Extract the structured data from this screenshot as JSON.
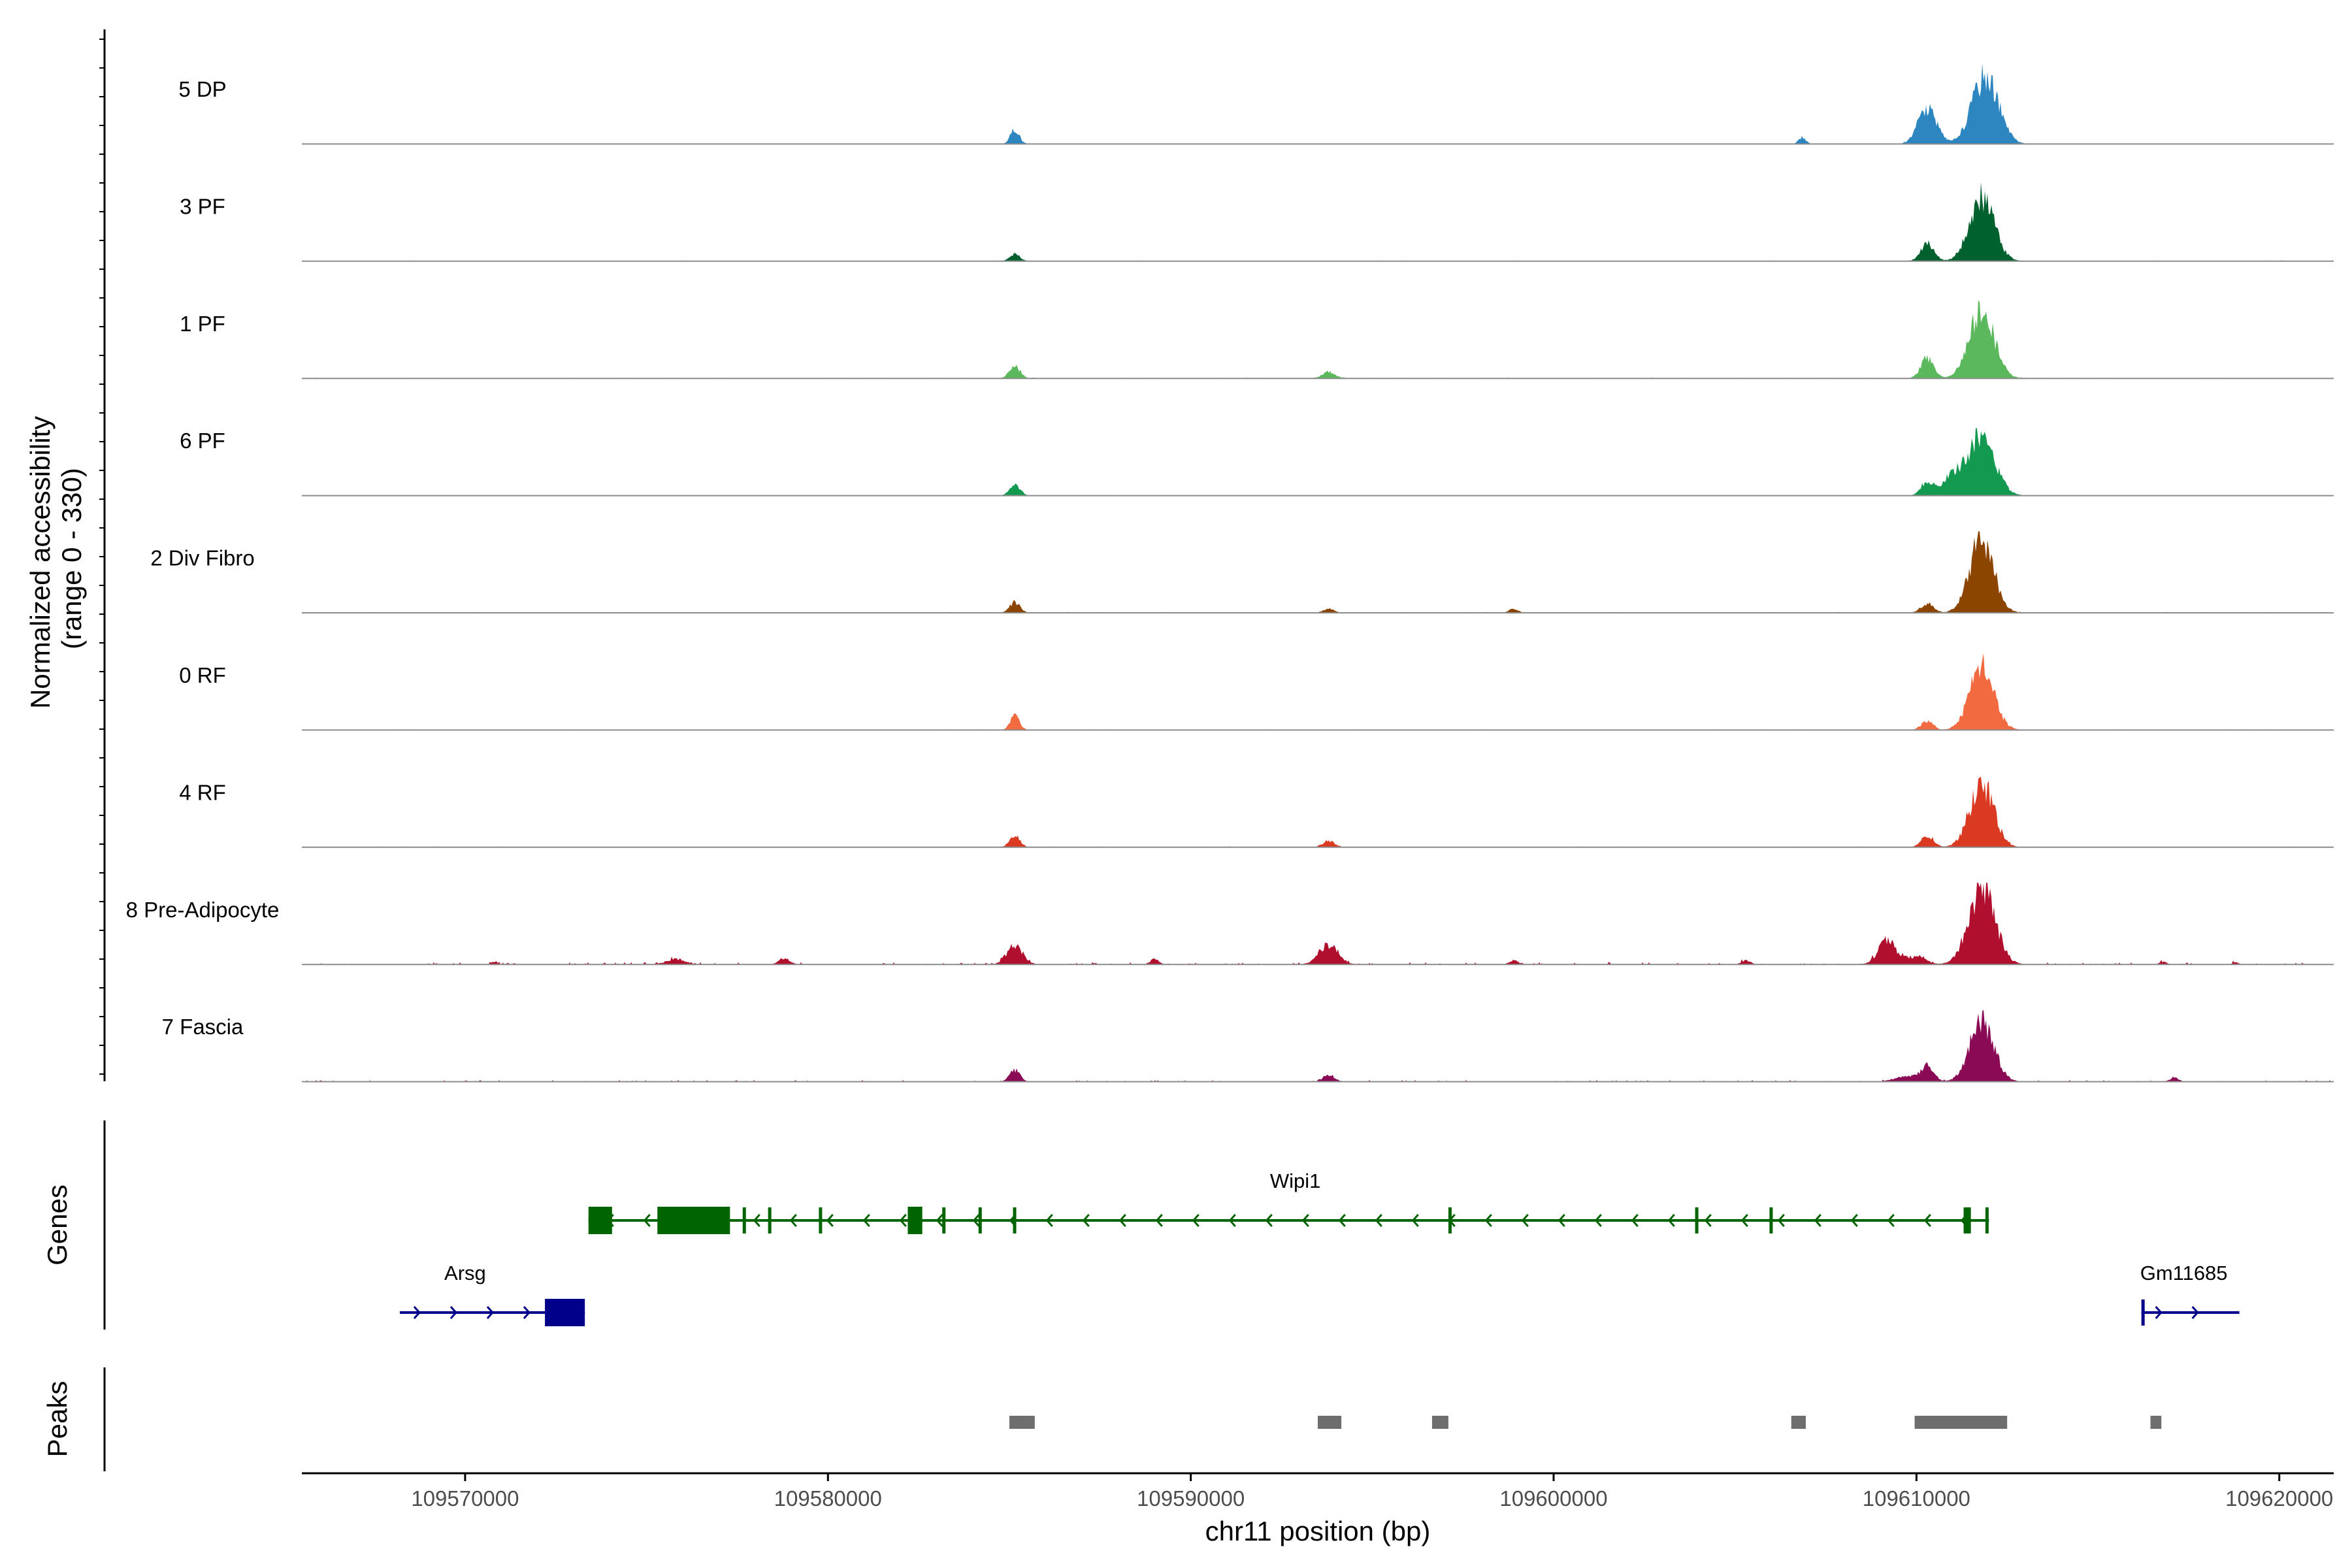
{
  "chart_data": {
    "type": "area",
    "title": "",
    "chromosome": "chr11",
    "xlabel": "chr11 position (bp)",
    "ylabel_line1": "Normalized accessibility",
    "ylabel_line2": "(range 0 - 330)",
    "y_range": [
      0,
      330
    ],
    "xlim": [
      109565500,
      109621500
    ],
    "x_ticks": [
      109570000,
      109580000,
      109590000,
      109600000,
      109610000,
      109620000
    ],
    "x_tick_labels": [
      "109570000",
      "109580000",
      "109590000",
      "109600000",
      "109610000",
      "109620000"
    ],
    "tracks": [
      {
        "name": "5 DP",
        "color": "#2e86c1",
        "background_noise": 0.4,
        "peaks": [
          [
            109585150,
            22,
            120
          ],
          [
            109606850,
            10,
            100
          ],
          [
            109610300,
            55,
            250
          ],
          [
            109611900,
            100,
            360
          ]
        ]
      },
      {
        "name": "3 PF",
        "color": "#00612e",
        "background_noise": 0.5,
        "peaks": [
          [
            109585150,
            10,
            150
          ],
          [
            109610300,
            28,
            180
          ],
          [
            109611800,
            95,
            340
          ]
        ]
      },
      {
        "name": "1 PF",
        "color": "#5cb85c",
        "background_noise": 0.6,
        "peaks": [
          [
            109585150,
            18,
            150
          ],
          [
            109593800,
            10,
            180
          ],
          [
            109610300,
            30,
            180
          ],
          [
            109611800,
            100,
            340
          ]
        ]
      },
      {
        "name": "6 PF",
        "color": "#139950",
        "background_noise": 0.5,
        "peaks": [
          [
            109585150,
            16,
            140
          ],
          [
            109610300,
            22,
            170
          ],
          [
            109611000,
            30,
            250
          ],
          [
            109611800,
            90,
            360
          ]
        ]
      },
      {
        "name": "2 Div Fibro",
        "color": "#8b4500",
        "background_noise": 0.7,
        "peaks": [
          [
            109585150,
            16,
            140
          ],
          [
            109593800,
            6,
            150
          ],
          [
            109598900,
            6,
            120
          ],
          [
            109610300,
            14,
            180
          ],
          [
            109611800,
            110,
            330
          ]
        ]
      },
      {
        "name": "0 RF",
        "color": "#f26a3f",
        "background_noise": 0.6,
        "peaks": [
          [
            109585150,
            22,
            130
          ],
          [
            109610300,
            14,
            160
          ],
          [
            109611800,
            95,
            330
          ]
        ]
      },
      {
        "name": "4 RF",
        "color": "#db3a22",
        "background_noise": 0.6,
        "peaks": [
          [
            109585150,
            18,
            140
          ],
          [
            109593800,
            10,
            160
          ],
          [
            109610300,
            18,
            170
          ],
          [
            109611800,
            95,
            330
          ]
        ]
      },
      {
        "name": "8 Pre-Adipocyte",
        "color": "#b0102d",
        "background_noise": 1.6,
        "peaks": [
          [
            109570800,
            4,
            80
          ],
          [
            109575800,
            8,
            250
          ],
          [
            109578800,
            9,
            150
          ],
          [
            109585150,
            28,
            220
          ],
          [
            109589000,
            8,
            120
          ],
          [
            109593800,
            30,
            260
          ],
          [
            109598900,
            6,
            120
          ],
          [
            109605300,
            6,
            120
          ],
          [
            109609200,
            35,
            250
          ],
          [
            109610000,
            12,
            250
          ],
          [
            109611800,
            115,
            360
          ],
          [
            109616800,
            4,
            100
          ],
          [
            109618800,
            3,
            80
          ]
        ]
      },
      {
        "name": "7 Fascia",
        "color": "#8b0a56",
        "background_noise": 1.1,
        "peaks": [
          [
            109585150,
            18,
            140
          ],
          [
            109593800,
            10,
            160
          ],
          [
            109609700,
            8,
            300
          ],
          [
            109610300,
            22,
            180
          ],
          [
            109611800,
            90,
            330
          ],
          [
            109617100,
            6,
            120
          ]
        ]
      }
    ],
    "genes": [
      {
        "name": "Wipi1",
        "strand": "-",
        "color": "#006400",
        "start": 109573400,
        "end": 109612000,
        "exons": [
          [
            109573400,
            109574050
          ],
          [
            109575300,
            109577300
          ],
          [
            109577650,
            109577720
          ],
          [
            109578350,
            109578420
          ],
          [
            109579750,
            109579820
          ],
          [
            109582200,
            109582600
          ],
          [
            109583150,
            109583200
          ],
          [
            109584150,
            109584200
          ],
          [
            109585100,
            109585160
          ],
          [
            109597100,
            109597160
          ],
          [
            109603900,
            109603980
          ],
          [
            109605950,
            109606010
          ],
          [
            109611300,
            109611500
          ],
          [
            109611900,
            109611980
          ]
        ]
      },
      {
        "name": "Arsg",
        "strand": "+",
        "color": "#00008b",
        "start": 109568200,
        "end": 109573300,
        "exons": [
          [
            109572200,
            109573300
          ]
        ]
      },
      {
        "name": "Gm11685",
        "strand": "+",
        "color": "#00008b",
        "start": 109616200,
        "end": 109618900,
        "exons": [
          [
            109616200,
            109616260
          ]
        ]
      }
    ],
    "peaks": [
      [
        109585000,
        109585700
      ],
      [
        109593500,
        109594150
      ],
      [
        109596650,
        109597100
      ],
      [
        109606550,
        109606950
      ],
      [
        109609950,
        109612500
      ],
      [
        109616450,
        109616750
      ]
    ],
    "panel_labels": {
      "genes": "Genes",
      "peaks": "Peaks"
    },
    "colors": {
      "gene_minus": "#006400",
      "gene_plus": "#00008b",
      "peak_bar": "#6e6e6e",
      "baseline": "#8c8c8c"
    }
  }
}
